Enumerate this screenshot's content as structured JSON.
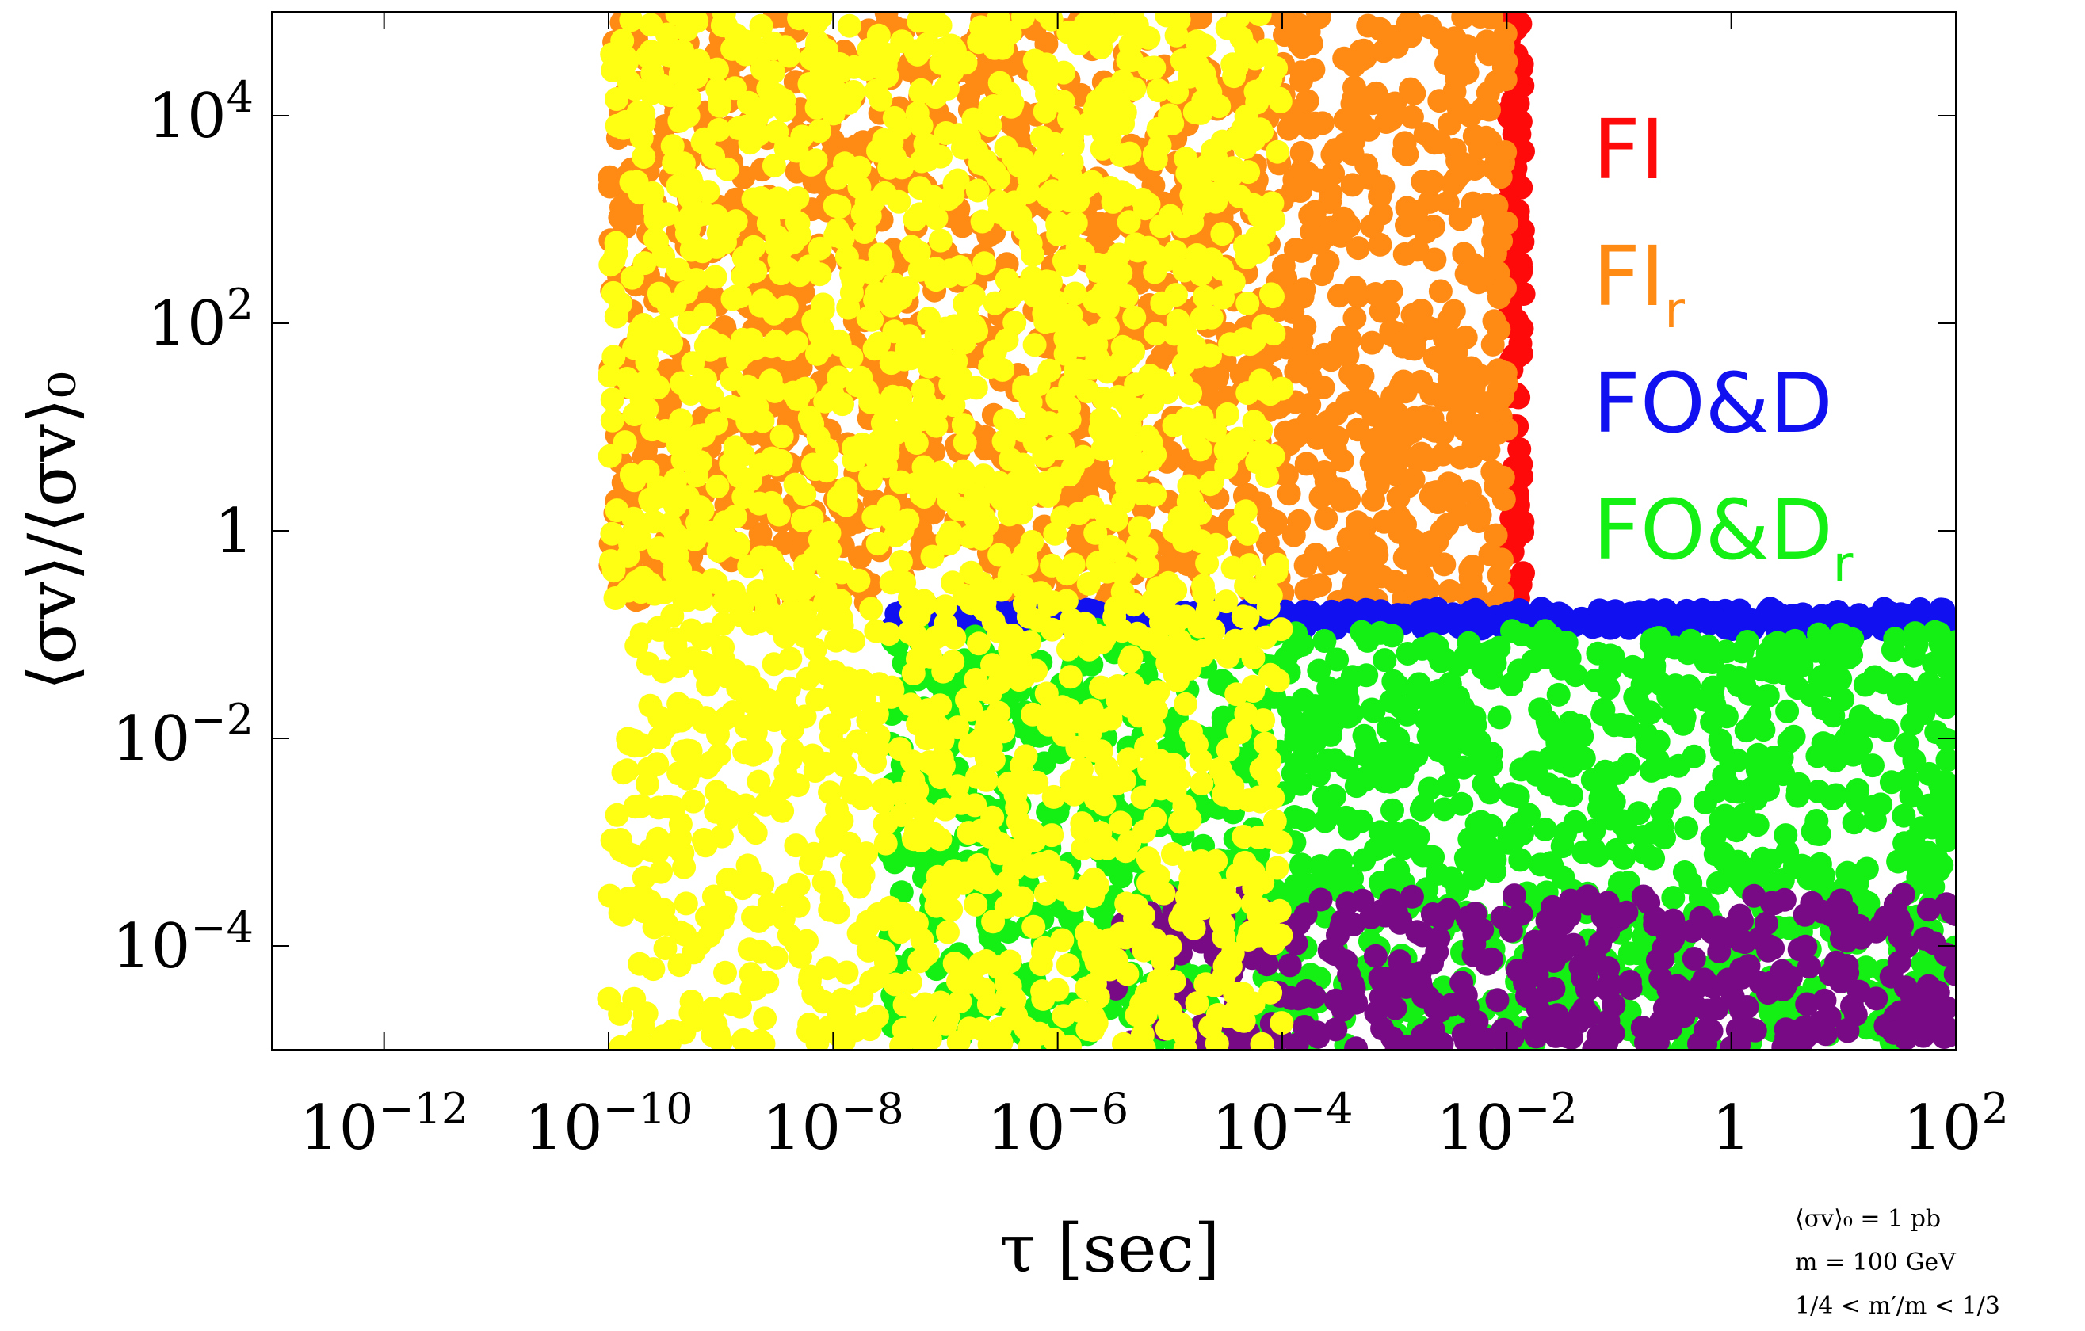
{
  "chart_data": {
    "type": "scatter",
    "title": "",
    "xlabel": "τ [sec]",
    "ylabel": "⟨σv⟩/⟨σv⟩₀",
    "xscale": "log",
    "yscale": "log",
    "xlim": [
      1e-13,
      100
    ],
    "ylim": [
      1e-05,
      100000.0
    ],
    "x_ticks": [
      {
        "value": 1e-12,
        "base": "10",
        "exp": "−12"
      },
      {
        "value": 1e-10,
        "base": "10",
        "exp": "−10"
      },
      {
        "value": 1e-08,
        "base": "10",
        "exp": "−8"
      },
      {
        "value": 1e-06,
        "base": "10",
        "exp": "−6"
      },
      {
        "value": 0.0001,
        "base": "10",
        "exp": "−4"
      },
      {
        "value": 0.01,
        "base": "10",
        "exp": "−2"
      },
      {
        "value": 1,
        "base": "1",
        "exp": ""
      },
      {
        "value": 100,
        "base": "10",
        "exp": "2"
      }
    ],
    "y_ticks": [
      {
        "value": 10000.0,
        "base": "10",
        "exp": "4"
      },
      {
        "value": 100.0,
        "base": "10",
        "exp": "2"
      },
      {
        "value": 1,
        "base": "1",
        "exp": ""
      },
      {
        "value": 0.01,
        "base": "10",
        "exp": "−2"
      },
      {
        "value": 0.0001,
        "base": "10",
        "exp": "−4"
      }
    ],
    "grid": false,
    "legend_position": "top-right",
    "series": [
      {
        "name": "FI",
        "label_main": "FI",
        "label_sub": "",
        "color": "#ff0a0a",
        "region": {
          "x_log": [
            -2.0,
            -1.85
          ],
          "y_log": [
            -0.75,
            5.0
          ]
        },
        "count": 110
      },
      {
        "name": "FIr",
        "label_main": "FI",
        "label_sub": "r",
        "color": "#ff8a14",
        "region": {
          "x_log": [
            -10.0,
            -2.0
          ],
          "y_log": [
            -0.7,
            5.0
          ]
        },
        "count": 1700
      },
      {
        "name": "FO&D",
        "label_main": "FO&D",
        "label_sub": "",
        "color": "#1010f0",
        "region": {
          "x_log": [
            -7.5,
            2.0
          ],
          "y_log": [
            -0.95,
            -0.75
          ]
        },
        "count": 360
      },
      {
        "name": "FO&Dr",
        "label_main": "FO&D",
        "label_sub": "r",
        "color": "#14f014",
        "region": {
          "x_log": [
            -7.5,
            2.0
          ],
          "y_log": [
            -5.0,
            -0.95
          ]
        },
        "count": 1400
      },
      {
        "name": "",
        "label_main": "",
        "label_sub": "",
        "color": "#790a86",
        "region": {
          "x_log": [
            -5.5,
            2.0
          ],
          "y_log": [
            -5.0,
            -3.5
          ]
        },
        "count": 420
      },
      {
        "name": "",
        "label_main": "",
        "label_sub": "",
        "color": "#ffff14",
        "region": {
          "x_log": [
            -10.0,
            -4.0
          ],
          "y_log": [
            -5.0,
            5.0
          ]
        },
        "count": 2000
      }
    ],
    "annotations": [
      "⟨σv⟩₀ = 1 pb",
      "m = 100 GeV",
      "1/4 < m′/m < 1/3"
    ]
  }
}
